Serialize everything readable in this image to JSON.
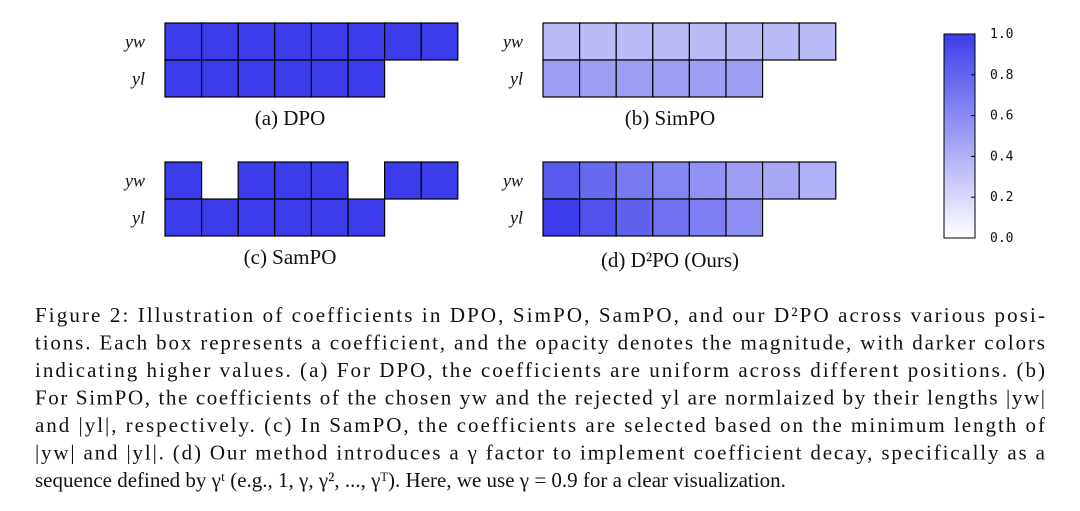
{
  "panels": [
    {
      "label": "(a) DPO",
      "rows": [
        {
          "name": "yw",
          "values": [
            1,
            1,
            1,
            1,
            1,
            1,
            1,
            1
          ]
        },
        {
          "name": "yl",
          "values": [
            1,
            1,
            1,
            1,
            1,
            1
          ]
        }
      ]
    },
    {
      "label": "(b) SimPO",
      "rows": [
        {
          "name": "yw",
          "values": [
            0.35,
            0.35,
            0.35,
            0.35,
            0.35,
            0.35,
            0.35,
            0.35
          ]
        },
        {
          "name": "yl",
          "values": [
            0.5,
            0.5,
            0.5,
            0.5,
            0.5,
            0.5
          ]
        }
      ]
    },
    {
      "label": "(c) SamPO",
      "rows": [
        {
          "name": "yw",
          "values": [
            1,
            null,
            1,
            1,
            1,
            null,
            1,
            1
          ]
        },
        {
          "name": "yl",
          "values": [
            1,
            1,
            1,
            1,
            1,
            1
          ]
        }
      ]
    },
    {
      "label": "(d) D²PO (Ours)",
      "rows": [
        {
          "name": "yw",
          "values": [
            0.85,
            0.77,
            0.69,
            0.62,
            0.56,
            0.5,
            0.45,
            0.4
          ]
        },
        {
          "name": "yl",
          "values": [
            1,
            0.9,
            0.81,
            0.73,
            0.66,
            0.59
          ]
        }
      ]
    }
  ],
  "colorbar": {
    "lim": [
      0,
      1
    ],
    "ticks": [
      {
        "value": 1,
        "label": "1.0"
      },
      {
        "value": 0.8,
        "label": "0.8"
      },
      {
        "value": 0.6,
        "label": "0.6"
      },
      {
        "value": 0.4,
        "label": "0.4"
      },
      {
        "value": 0.2,
        "label": "0.2"
      },
      {
        "value": 0,
        "label": "0.0"
      }
    ]
  },
  "caption": [
    "Figure 2: Illustration of coefficients in DPO, SimPO, SamPO, and our D²PO across various posi-",
    "tions. Each box represents a coefficient, and the opacity denotes the magnitude, with darker colors",
    "indicating higher values. (a) For DPO, the coefficients are uniform across different positions. (b)",
    "For SimPO, the coefficients of the chosen yw and the rejected yl are normlaized by their lengths |yw|",
    "and |yl|, respectively. (c) In SamPO, the coefficients are selected based on the minimum length of",
    "|yw| and |yl|. (d) Our method introduces a γ factor to implement coefficient decay, specifically as a",
    "sequence defined by γᵗ (e.g., 1, γ, γ², ..., γᵀ). Here, we use γ = 0.9 for a clear visualization."
  ]
}
